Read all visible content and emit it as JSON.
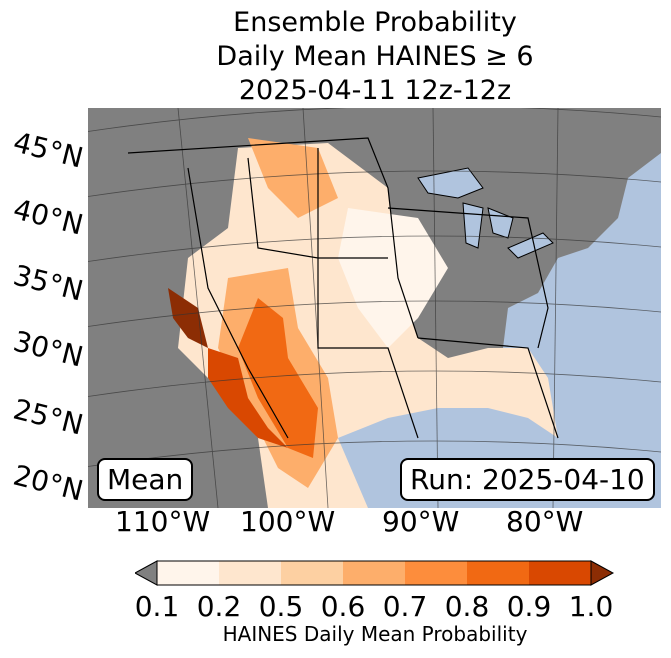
{
  "title": {
    "line1": "Ensemble Probability",
    "line2": "Daily Mean HAINES ≥ 6",
    "line3": "2025-04-11 12z-12z"
  },
  "map": {
    "lat_labels": [
      "45°N",
      "40°N",
      "35°N",
      "30°N",
      "25°N",
      "20°N"
    ],
    "lon_labels": [
      "110°W",
      "100°W",
      "90°W",
      "80°W"
    ],
    "badge_left": "Mean",
    "badge_right": "Run: 2025-04-10",
    "colors": {
      "ocean": "#b0c4de",
      "land_low": "#808080",
      "border": "#000000"
    }
  },
  "colorbar": {
    "ticks": [
      "0.1",
      "0.2",
      "0.5",
      "0.6",
      "0.7",
      "0.8",
      "0.9",
      "1.0"
    ],
    "label": "HAINES Daily Mean Probability",
    "colors": [
      "#fff5eb",
      "#fee6ce",
      "#fdd0a2",
      "#fdae6b",
      "#fd8d3c",
      "#f16913",
      "#d94801",
      "#8c2d04"
    ],
    "under_color": "#808080"
  }
}
